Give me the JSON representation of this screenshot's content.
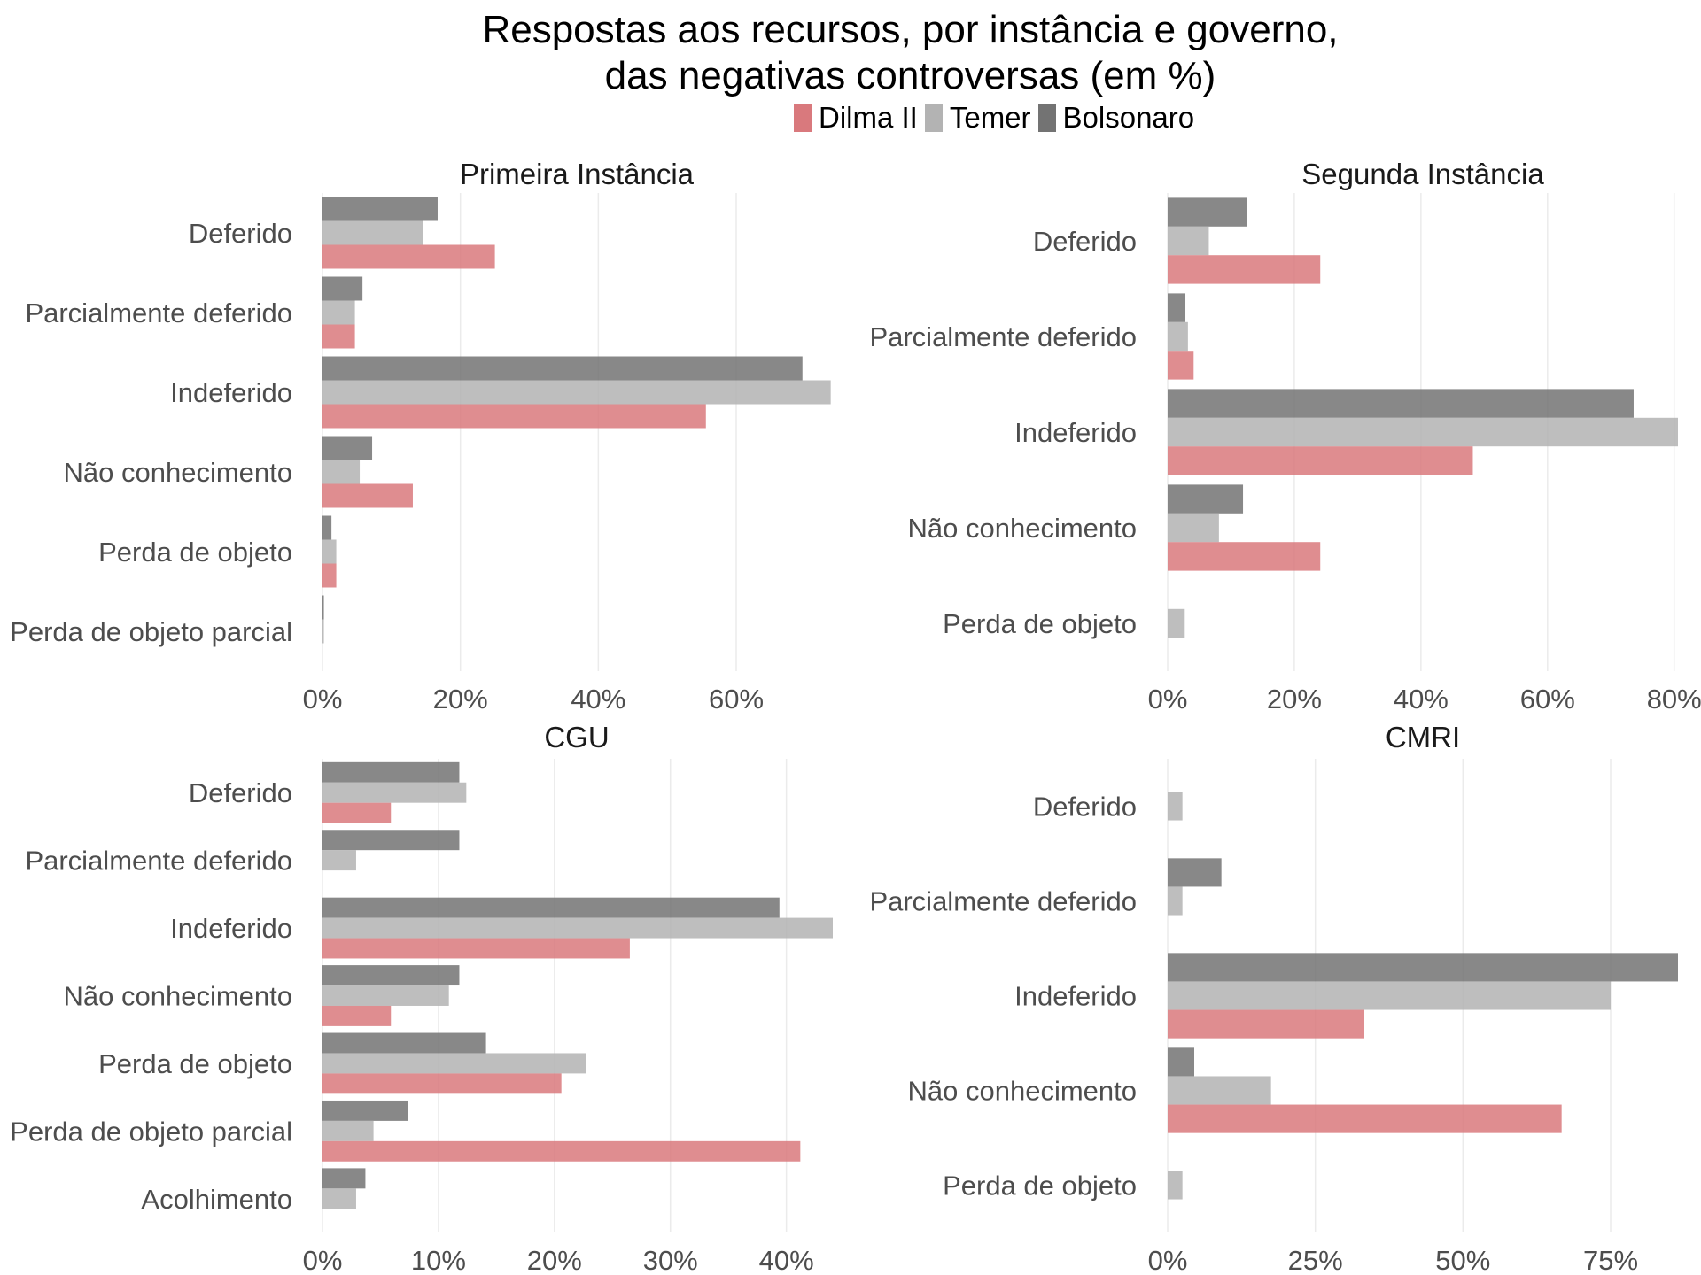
{
  "title_line1": "Respostas aos recursos, por instância e governo,",
  "title_line2": "das negativas controversas (em %)",
  "legend": [
    {
      "label": "Dilma II",
      "color": "#d9797d"
    },
    {
      "label": "Temer",
      "color": "#b3b3b3"
    },
    {
      "label": "Bolsonaro",
      "color": "#737373"
    }
  ],
  "chart_data": [
    {
      "type": "bar",
      "orientation": "horizontal",
      "title": "Primeira Instância",
      "categories": [
        "Deferido",
        "Parcialmente deferido",
        "Indeferido",
        "Não conhecimento",
        "Perda de objeto",
        "Perda de objeto parcial"
      ],
      "series": [
        {
          "name": "Dilma II",
          "values": [
            25.0,
            4.7,
            55.6,
            13.1,
            2.0,
            0
          ]
        },
        {
          "name": "Temer",
          "values": [
            14.6,
            4.7,
            73.7,
            5.4,
            2.0,
            0.2
          ]
        },
        {
          "name": "Bolsonaro",
          "values": [
            16.7,
            5.8,
            69.6,
            7.2,
            1.3,
            0.2
          ]
        }
      ],
      "xlim": [
        0,
        74
      ],
      "xticks": [
        0,
        20,
        40,
        60
      ],
      "xtick_labels": [
        "0%",
        "20%",
        "40%",
        "60%"
      ],
      "grid": "vertical"
    },
    {
      "type": "bar",
      "orientation": "horizontal",
      "title": "Segunda Instância",
      "categories": [
        "Deferido",
        "Parcialmente deferido",
        "Indeferido",
        "Não conhecimento",
        "Perda de objeto"
      ],
      "series": [
        {
          "name": "Dilma II",
          "values": [
            24.1,
            4.1,
            48.2,
            24.1,
            0
          ]
        },
        {
          "name": "Temer",
          "values": [
            6.5,
            3.2,
            80.6,
            8.1,
            2.7
          ]
        },
        {
          "name": "Bolsonaro",
          "values": [
            12.5,
            2.8,
            73.6,
            11.9,
            0
          ]
        }
      ],
      "xlim": [
        0,
        80.6
      ],
      "xticks": [
        0,
        20,
        40,
        60,
        80
      ],
      "xtick_labels": [
        "0%",
        "20%",
        "40%",
        "60%",
        "80%"
      ],
      "grid": "vertical"
    },
    {
      "type": "bar",
      "orientation": "horizontal",
      "title": "CGU",
      "categories": [
        "Deferido",
        "Parcialmente deferido",
        "Indeferido",
        "Não conhecimento",
        "Perda de objeto",
        "Perda de objeto parcial",
        "Acolhimento"
      ],
      "series": [
        {
          "name": "Dilma II",
          "values": [
            5.9,
            0,
            26.5,
            5.9,
            20.6,
            41.2,
            0
          ]
        },
        {
          "name": "Temer",
          "values": [
            12.4,
            2.9,
            44.0,
            10.9,
            22.7,
            4.4,
            2.9
          ]
        },
        {
          "name": "Bolsonaro",
          "values": [
            11.8,
            11.8,
            39.4,
            11.8,
            14.1,
            7.4,
            3.7
          ]
        }
      ],
      "xlim": [
        0,
        44.0
      ],
      "xticks": [
        0,
        10,
        20,
        30,
        40
      ],
      "xtick_labels": [
        "0%",
        "10%",
        "20%",
        "30%",
        "40%"
      ],
      "grid": "vertical"
    },
    {
      "type": "bar",
      "orientation": "horizontal",
      "title": "CMRI",
      "categories": [
        "Deferido",
        "Parcialmente deferido",
        "Indeferido",
        "Não conhecimento",
        "Perda de objeto"
      ],
      "series": [
        {
          "name": "Dilma II",
          "values": [
            0,
            0,
            33.3,
            66.7,
            0
          ]
        },
        {
          "name": "Temer",
          "values": [
            2.5,
            2.5,
            75.0,
            17.5,
            2.5
          ]
        },
        {
          "name": "Bolsonaro",
          "values": [
            0,
            9.1,
            86.4,
            4.5,
            0
          ]
        }
      ],
      "xlim": [
        0,
        86.4
      ],
      "xticks": [
        0,
        25,
        50,
        75
      ],
      "xtick_labels": [
        "0%",
        "25%",
        "50%",
        "75%"
      ],
      "grid": "vertical"
    }
  ]
}
